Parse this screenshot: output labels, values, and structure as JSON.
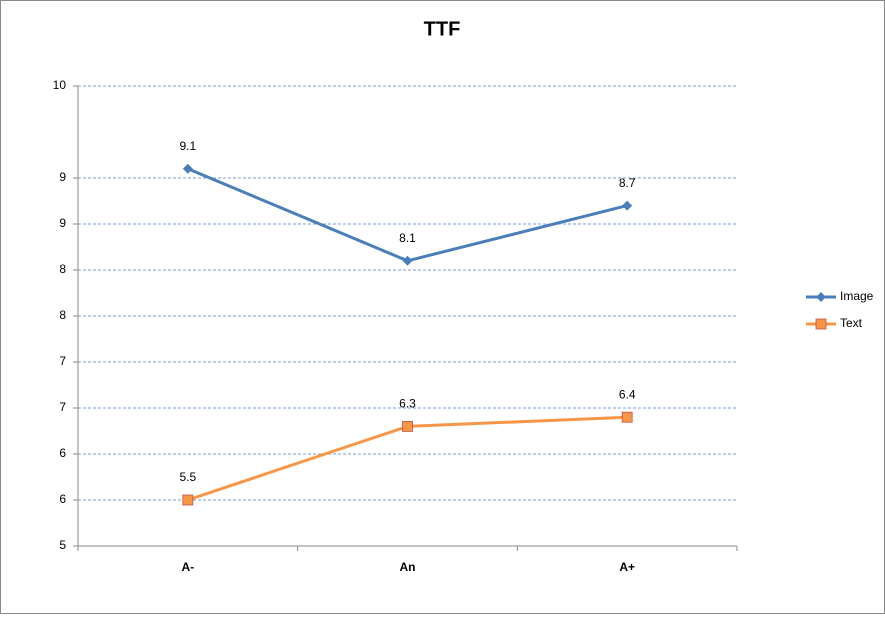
{
  "chart_data": {
    "type": "line",
    "title": "TTF",
    "categories": [
      "A-",
      "An",
      "A+"
    ],
    "series": [
      {
        "name": "Image",
        "color": "#4a7ebb",
        "marker": "diamond",
        "values": [
          9.1,
          8.1,
          8.7
        ]
      },
      {
        "name": "Text",
        "color": "#f79646",
        "marker": "square",
        "values": [
          5.5,
          6.3,
          6.4
        ]
      }
    ],
    "ylim": [
      5,
      10
    ],
    "yticks": [
      5,
      {
        "value": 5.5,
        "label": "6"
      },
      6,
      {
        "value": 6.5,
        "label": "7"
      },
      7,
      {
        "value": 7.5,
        "label": "8"
      },
      8,
      {
        "value": 8.5,
        "label": "9"
      },
      9,
      10
    ],
    "grid": true,
    "legend": "right",
    "data_labels": true
  }
}
